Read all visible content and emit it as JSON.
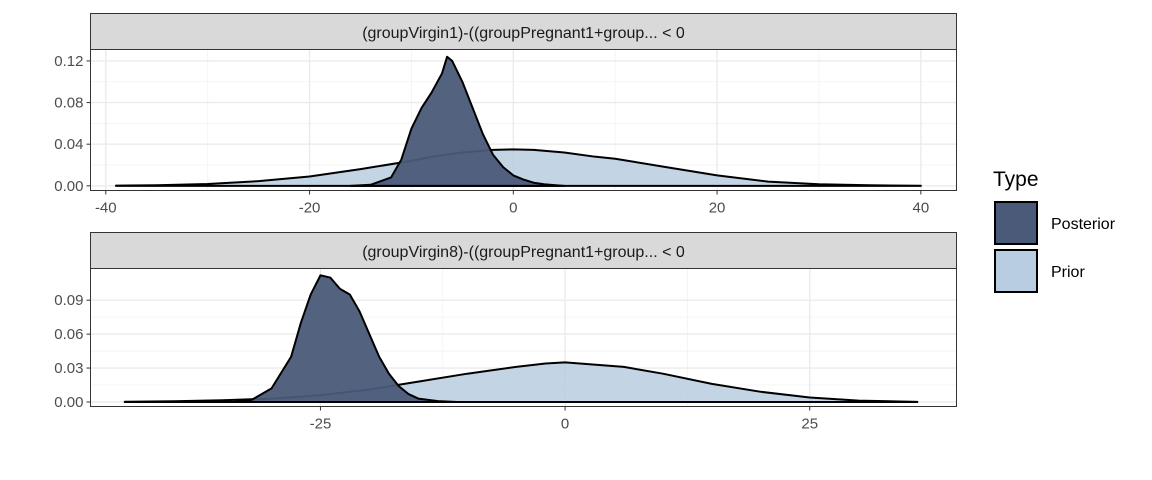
{
  "legend": {
    "title": "Type",
    "items": [
      {
        "label": "Posterior",
        "color": "#4a5a78"
      },
      {
        "label": "Prior",
        "color": "#b9cde0"
      }
    ]
  },
  "chart_data": [
    {
      "type": "area",
      "chart_kind": "density",
      "title": "(groupVirgin1)-((groupPregnant1+group... < 0",
      "xlabel": "",
      "ylabel": "",
      "xlim": [
        -41.5,
        43.5
      ],
      "ylim": [
        -0.0045,
        0.131
      ],
      "x_ticks": [
        -40,
        -20,
        0,
        20,
        40
      ],
      "x_tick_labels": [
        "-40",
        "-20",
        "0",
        "20",
        "40"
      ],
      "y_ticks": [
        0,
        0.04,
        0.08,
        0.12
      ],
      "y_tick_labels": [
        "0.00",
        "0.04",
        "0.08",
        "0.12"
      ],
      "grid": true,
      "series": [
        {
          "name": "Posterior",
          "color": "#4a5a78",
          "x": [
            -16,
            -14,
            -12,
            -11,
            -10,
            -9,
            -8,
            -7,
            -6.5,
            -6,
            -5,
            -4,
            -3,
            -2,
            -1,
            0,
            1,
            2,
            3,
            4,
            5
          ],
          "y": [
            0,
            0.001,
            0.008,
            0.025,
            0.055,
            0.075,
            0.09,
            0.108,
            0.124,
            0.12,
            0.1,
            0.075,
            0.05,
            0.03,
            0.018,
            0.01,
            0.006,
            0.003,
            0.0015,
            0.0007,
            0
          ]
        },
        {
          "name": "Prior",
          "color": "#b9cde0",
          "x": [
            -39,
            -35,
            -30,
            -25,
            -20,
            -15,
            -10,
            -8,
            -5,
            -2,
            0,
            2,
            5,
            8,
            10,
            15,
            20,
            25,
            30,
            35,
            40
          ],
          "y": [
            0.0002,
            0.0006,
            0.0018,
            0.0045,
            0.009,
            0.016,
            0.024,
            0.028,
            0.032,
            0.0345,
            0.035,
            0.0345,
            0.032,
            0.028,
            0.026,
            0.018,
            0.01,
            0.004,
            0.0015,
            0.0005,
            0.0001
          ]
        }
      ]
    },
    {
      "type": "area",
      "chart_kind": "density",
      "title": "(groupVirgin8)-((groupPregnant1+group... < 0",
      "xlabel": "",
      "ylabel": "",
      "xlim": [
        -48.5,
        40
      ],
      "ylim": [
        -0.004,
        0.118
      ],
      "x_ticks": [
        -25,
        0,
        25
      ],
      "x_tick_labels": [
        "-25",
        "0",
        "25"
      ],
      "y_ticks": [
        0,
        0.03,
        0.06,
        0.09
      ],
      "y_tick_labels": [
        "0.00",
        "0.03",
        "0.06",
        "0.09"
      ],
      "grid": true,
      "series": [
        {
          "name": "Posterior",
          "color": "#4a5a78",
          "x": [
            -34,
            -32,
            -30,
            -28,
            -27,
            -26,
            -25,
            -24,
            -23,
            -22,
            -21,
            -20,
            -19,
            -18,
            -17,
            -16,
            -15,
            -13,
            -11
          ],
          "y": [
            0,
            0.002,
            0.012,
            0.04,
            0.07,
            0.095,
            0.112,
            0.11,
            0.1,
            0.095,
            0.08,
            0.06,
            0.04,
            0.025,
            0.014,
            0.007,
            0.003,
            0.0008,
            0
          ]
        },
        {
          "name": "Prior",
          "color": "#b9cde0",
          "x": [
            -45,
            -40,
            -35,
            -30,
            -25,
            -20,
            -15,
            -10,
            -5,
            -2,
            0,
            3,
            6,
            10,
            15,
            20,
            25,
            30,
            36
          ],
          "y": [
            0.0002,
            0.0006,
            0.0015,
            0.003,
            0.006,
            0.011,
            0.018,
            0.025,
            0.031,
            0.034,
            0.035,
            0.033,
            0.031,
            0.025,
            0.016,
            0.009,
            0.004,
            0.0012,
            0.0001
          ]
        }
      ]
    }
  ]
}
